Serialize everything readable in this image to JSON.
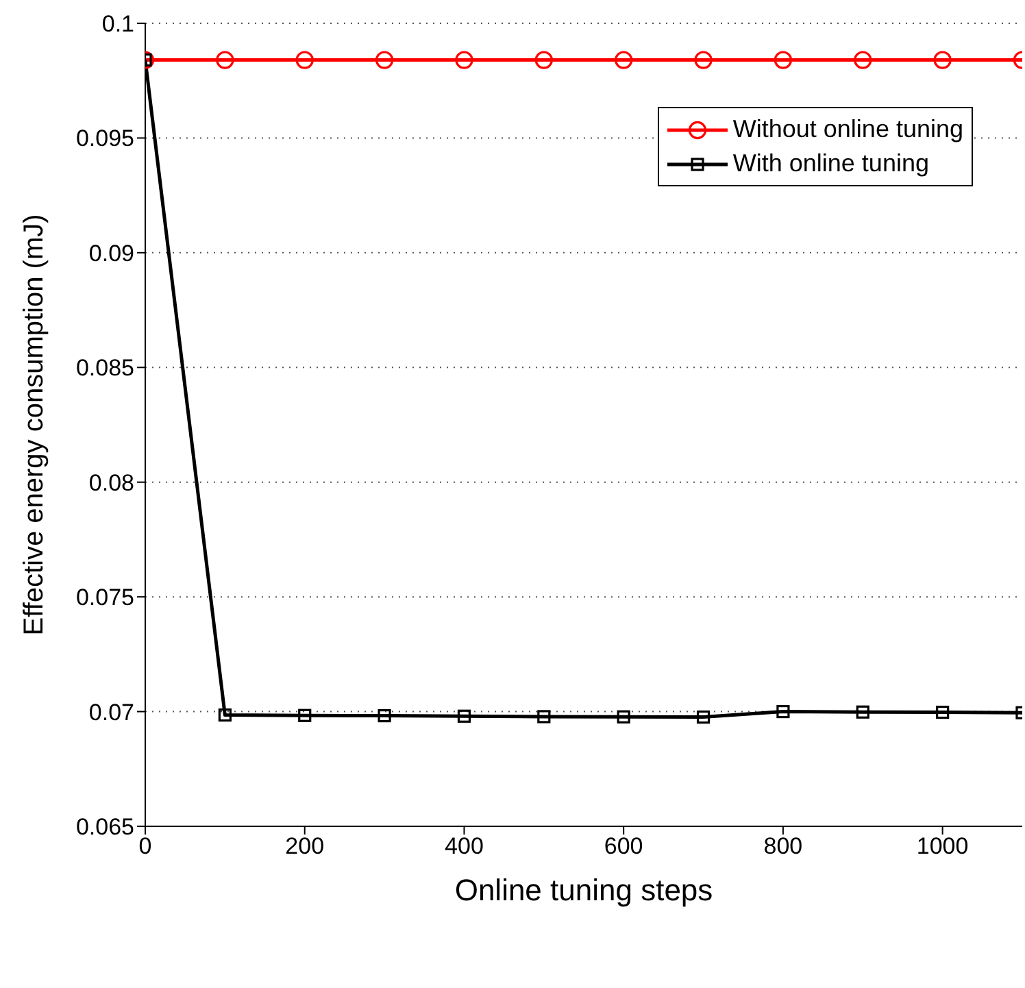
{
  "chart_data": {
    "type": "line",
    "xlabel": "Online tuning steps",
    "ylabel": "Effective energy consumption (mJ)",
    "x": [
      0,
      100,
      200,
      300,
      400,
      500,
      600,
      700,
      800,
      900,
      1000,
      1100
    ],
    "series": [
      {
        "name": "Without online tuning",
        "color": "#ff0000",
        "marker": "circle",
        "values": [
          0.0984,
          0.0984,
          0.0984,
          0.0984,
          0.0984,
          0.0984,
          0.0984,
          0.0984,
          0.0984,
          0.0984,
          0.0984,
          0.0984
        ]
      },
      {
        "name": "With online tuning",
        "color": "#000000",
        "marker": "square",
        "values": [
          0.0984,
          0.06985,
          0.06983,
          0.06982,
          0.0698,
          0.06978,
          0.06977,
          0.06976,
          0.07,
          0.06998,
          0.06997,
          0.06995
        ]
      }
    ],
    "xlim": [
      0,
      1100
    ],
    "xticks": [
      0,
      200,
      400,
      600,
      800,
      1000
    ],
    "ylim": [
      0.065,
      0.1
    ],
    "yticks": [
      0.065,
      0.07,
      0.075,
      0.08,
      0.085,
      0.09,
      0.095,
      0.1
    ],
    "grid": "y",
    "legend": "top right",
    "line_style": "solid"
  }
}
